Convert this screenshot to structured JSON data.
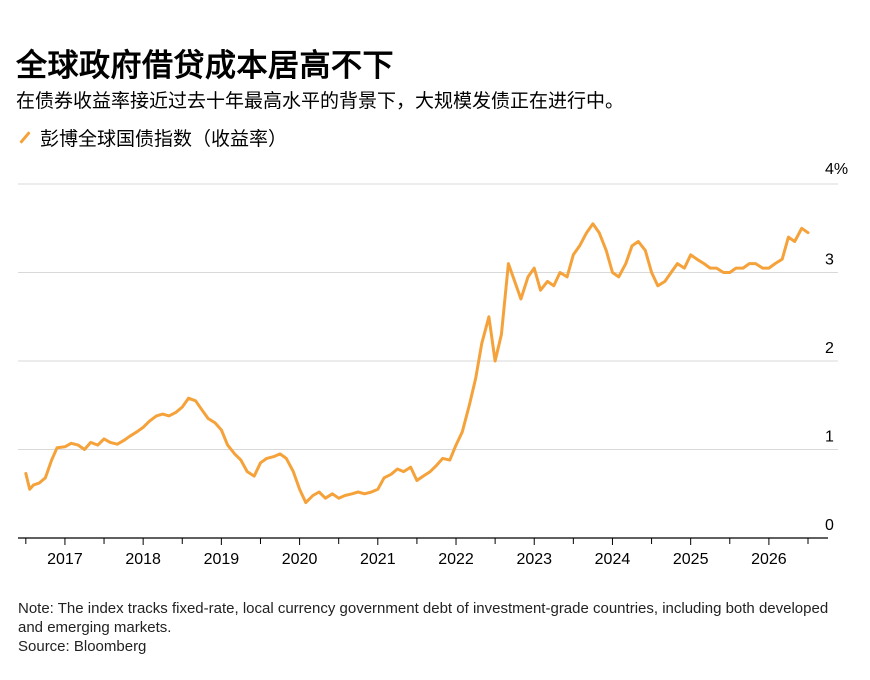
{
  "header": {
    "title": "全球政府借贷成本居高不下",
    "subtitle": "在债券收益率接近过去十年最高水平的背景下，大规模发债正在进行中。"
  },
  "legend": {
    "label": "彭博全球国债指数（收益率）"
  },
  "footer": {
    "note": "Note: The index tracks fixed-rate, local currency government debt of investment-grade countries, including both developed and emerging markets.",
    "source": "Source: Bloomberg"
  },
  "chart_data": {
    "type": "line",
    "title": "全球政府借贷成本居高不下",
    "xlabel": "",
    "ylabel": "",
    "y_unit_label": "4%",
    "xlim": [
      2016.4,
      2026.5
    ],
    "ylim": [
      0,
      4
    ],
    "yticks": [
      {
        "value": 0,
        "label": "0"
      },
      {
        "value": 1,
        "label": "1"
      },
      {
        "value": 2,
        "label": "2"
      },
      {
        "value": 3,
        "label": "3"
      },
      {
        "value": 4,
        "label": "4%"
      }
    ],
    "xticks": [
      {
        "value": 2017,
        "label": "2017"
      },
      {
        "value": 2018,
        "label": "2018"
      },
      {
        "value": 2019,
        "label": "2019"
      },
      {
        "value": 2020,
        "label": "2020"
      },
      {
        "value": 2021,
        "label": "2021"
      },
      {
        "value": 2022,
        "label": "2022"
      },
      {
        "value": 2023,
        "label": "2023"
      },
      {
        "value": 2024,
        "label": "2024"
      },
      {
        "value": 2025,
        "label": "2025"
      },
      {
        "value": 2026,
        "label": "2026"
      }
    ],
    "grid": true,
    "legend_position": "top-left",
    "line_color": "#f5a23b",
    "series": [
      {
        "name": "彭博全球国债指数（收益率）",
        "x": [
          2016.5,
          2016.55,
          2016.6,
          2016.67,
          2016.75,
          2016.83,
          2016.9,
          2017.0,
          2017.08,
          2017.17,
          2017.25,
          2017.33,
          2017.42,
          2017.5,
          2017.58,
          2017.67,
          2017.75,
          2017.83,
          2017.92,
          2018.0,
          2018.08,
          2018.17,
          2018.25,
          2018.33,
          2018.42,
          2018.5,
          2018.58,
          2018.67,
          2018.75,
          2018.83,
          2018.92,
          2019.0,
          2019.08,
          2019.17,
          2019.25,
          2019.33,
          2019.42,
          2019.5,
          2019.58,
          2019.67,
          2019.75,
          2019.83,
          2019.92,
          2020.0,
          2020.08,
          2020.17,
          2020.25,
          2020.33,
          2020.42,
          2020.5,
          2020.58,
          2020.67,
          2020.75,
          2020.83,
          2020.92,
          2021.0,
          2021.08,
          2021.17,
          2021.25,
          2021.33,
          2021.42,
          2021.5,
          2021.58,
          2021.67,
          2021.75,
          2021.83,
          2021.92,
          2022.0,
          2022.08,
          2022.17,
          2022.25,
          2022.33,
          2022.42,
          2022.5,
          2022.58,
          2022.67,
          2022.75,
          2022.83,
          2022.92,
          2023.0,
          2023.08,
          2023.17,
          2023.25,
          2023.33,
          2023.42,
          2023.5,
          2023.58,
          2023.67,
          2023.75,
          2023.83,
          2023.92,
          2024.0,
          2024.08,
          2024.17,
          2024.25,
          2024.33,
          2024.42,
          2024.5,
          2024.58,
          2024.67,
          2024.75,
          2024.83,
          2024.92,
          2025.0,
          2025.08,
          2025.17,
          2025.25,
          2025.33,
          2025.42,
          2025.5,
          2025.58,
          2025.67,
          2025.75,
          2025.83,
          2025.92,
          2026.0,
          2026.08,
          2026.17,
          2026.25,
          2026.33,
          2026.42,
          2026.5
        ],
        "values": [
          0.73,
          0.55,
          0.6,
          0.62,
          0.68,
          0.88,
          1.02,
          1.03,
          1.07,
          1.05,
          1.0,
          1.08,
          1.05,
          1.12,
          1.08,
          1.06,
          1.1,
          1.15,
          1.2,
          1.25,
          1.32,
          1.38,
          1.4,
          1.38,
          1.42,
          1.48,
          1.58,
          1.55,
          1.45,
          1.35,
          1.3,
          1.22,
          1.05,
          0.95,
          0.88,
          0.75,
          0.7,
          0.85,
          0.9,
          0.92,
          0.95,
          0.9,
          0.75,
          0.55,
          0.4,
          0.48,
          0.52,
          0.45,
          0.5,
          0.45,
          0.48,
          0.5,
          0.52,
          0.5,
          0.52,
          0.55,
          0.68,
          0.72,
          0.78,
          0.75,
          0.8,
          0.65,
          0.7,
          0.75,
          0.82,
          0.9,
          0.88,
          1.05,
          1.2,
          1.5,
          1.8,
          2.2,
          2.5,
          2.0,
          2.3,
          3.1,
          2.9,
          2.7,
          2.95,
          3.05,
          2.8,
          2.9,
          2.85,
          3.0,
          2.95,
          3.2,
          3.3,
          3.45,
          3.55,
          3.45,
          3.25,
          3.0,
          2.95,
          3.1,
          3.3,
          3.35,
          3.25,
          3.0,
          2.85,
          2.9,
          3.0,
          3.1,
          3.05,
          3.2,
          3.15,
          3.1,
          3.05,
          3.05,
          3.0,
          3.0,
          3.05,
          3.05,
          3.1,
          3.1,
          3.05,
          3.05,
          3.1,
          3.15,
          3.4,
          3.35,
          3.5,
          3.45
        ]
      }
    ]
  }
}
